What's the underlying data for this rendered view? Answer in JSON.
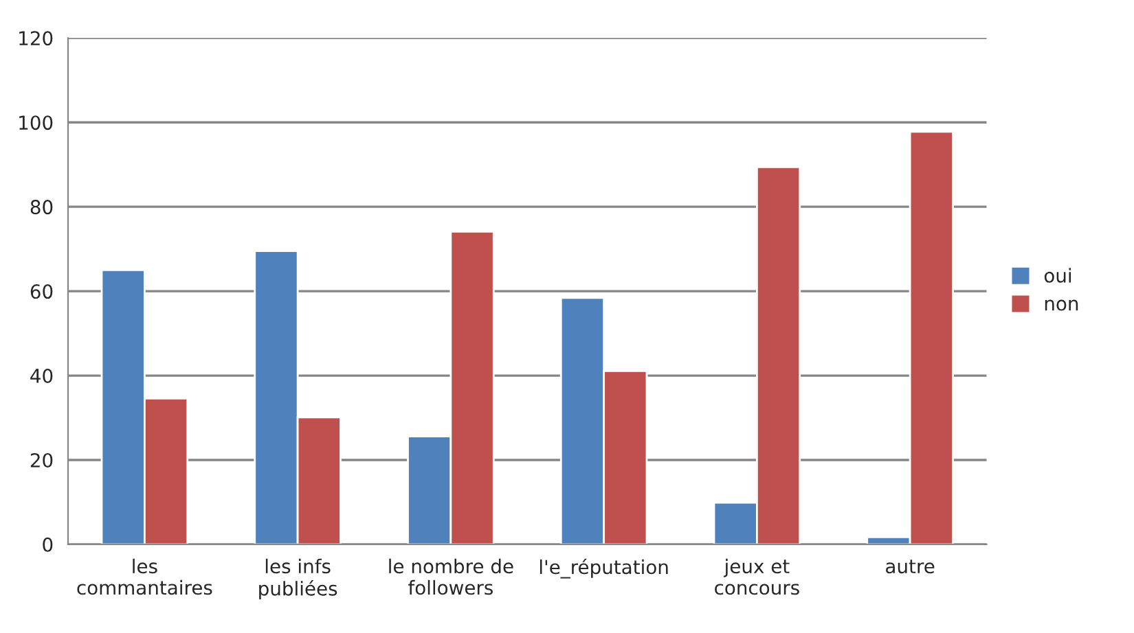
{
  "chart_data": {
    "type": "bar",
    "categories": [
      "les\ncommantaires",
      "les infs\npubliées",
      "le nombre de\nfollowers",
      "l'e_réputation",
      "jeux et\nconcours",
      "autre"
    ],
    "series": [
      {
        "name": "oui",
        "color": "#4f81bd",
        "values": [
          65,
          69.5,
          25.6,
          58.4,
          9.9,
          1.7
        ]
      },
      {
        "name": "non",
        "color": "#c0504d",
        "values": [
          34.6,
          30.1,
          74.1,
          41.1,
          89.4,
          97.8
        ]
      }
    ],
    "ylim": [
      0,
      120
    ],
    "yticks": [
      0,
      20,
      40,
      60,
      80,
      100,
      120
    ],
    "grid": "y",
    "legend": "right"
  }
}
